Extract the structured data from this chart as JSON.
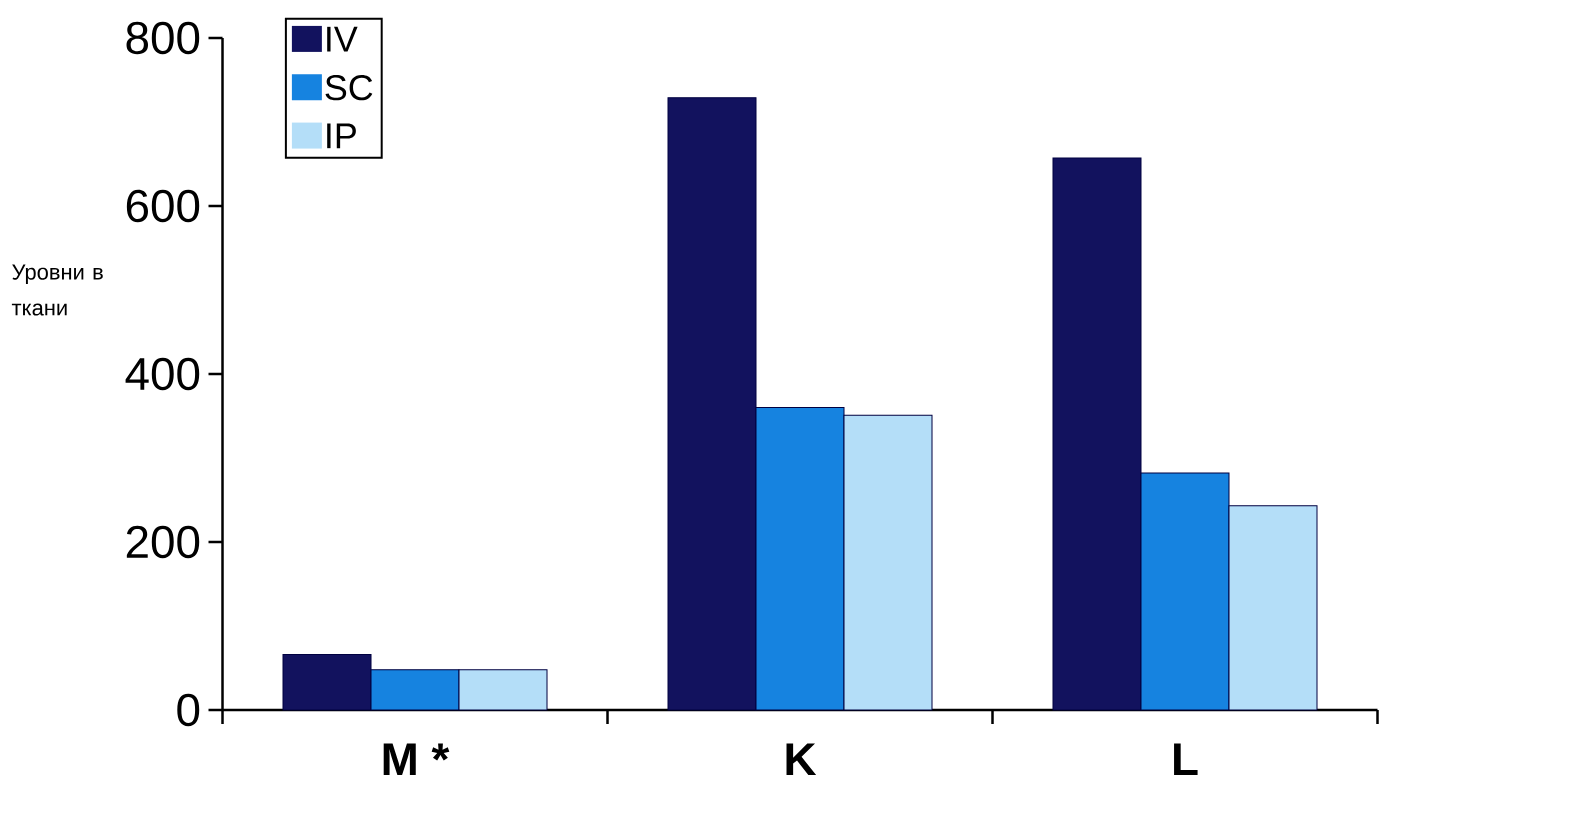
{
  "chart_data": {
    "type": "bar",
    "ylabel": "Уровни в ткани",
    "categories": [
      "M *",
      "K",
      "L"
    ],
    "series": [
      {
        "name": "IV",
        "color": "#12125e",
        "values": [
          66,
          729,
          657
        ]
      },
      {
        "name": "SC",
        "color": "#1683e0",
        "values": [
          48,
          360,
          282
        ]
      },
      {
        "name": "IP",
        "color": "#b4def8",
        "values": [
          48,
          351,
          243
        ]
      }
    ],
    "ylim": [
      0,
      800
    ],
    "yticks": [
      0,
      200,
      400,
      600,
      800
    ],
    "legend": "top left"
  }
}
